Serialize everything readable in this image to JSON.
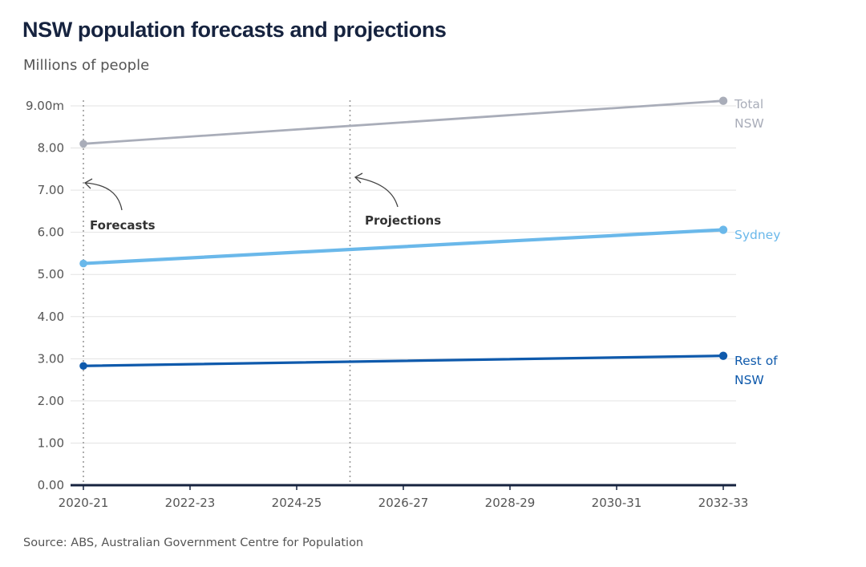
{
  "title": "NSW population forecasts and projections",
  "subtitle": "Millions of people",
  "source": "Source: ABS, Australian Government Centre for Population",
  "colors": {
    "total": "#a9adb9",
    "sydney": "#6ab8ea",
    "rest": "#0f5aac",
    "grid": "#e3e3e3",
    "axis": "#16233f",
    "divider": "#9a9a9a"
  },
  "chart_data": {
    "type": "line",
    "title": "NSW population forecasts and projections",
    "ylabel": "Millions of people",
    "xlabel": "",
    "x_ticks": [
      "2020-21",
      "2022-23",
      "2024-25",
      "2026-27",
      "2028-29",
      "2030-31",
      "2032-33"
    ],
    "y_ticks": [
      "0.00",
      "1.00",
      "2.00",
      "3.00",
      "4.00",
      "5.00",
      "6.00",
      "7.00",
      "8.00",
      "9.00m"
    ],
    "ylim": [
      0,
      9
    ],
    "grid": true,
    "series": [
      {
        "name": "Total NSW",
        "label_lines": [
          "Total",
          "NSW"
        ],
        "color_key": "total",
        "x": [
          "2020-21",
          "2032-33"
        ],
        "values": [
          8.1,
          9.12
        ]
      },
      {
        "name": "Sydney",
        "label_lines": [
          "Sydney"
        ],
        "color_key": "sydney",
        "x": [
          "2020-21",
          "2032-33"
        ],
        "values": [
          5.26,
          6.06
        ]
      },
      {
        "name": "Rest of NSW",
        "label_lines": [
          "Rest of",
          "NSW"
        ],
        "color_key": "rest",
        "x": [
          "2020-21",
          "2032-33"
        ],
        "values": [
          2.83,
          3.07
        ]
      }
    ],
    "annotations": [
      {
        "text": "Forecasts",
        "x": "2020-21",
        "line_style": "dotted"
      },
      {
        "text": "Projections",
        "x": "2025-26",
        "line_style": "dotted"
      }
    ]
  }
}
